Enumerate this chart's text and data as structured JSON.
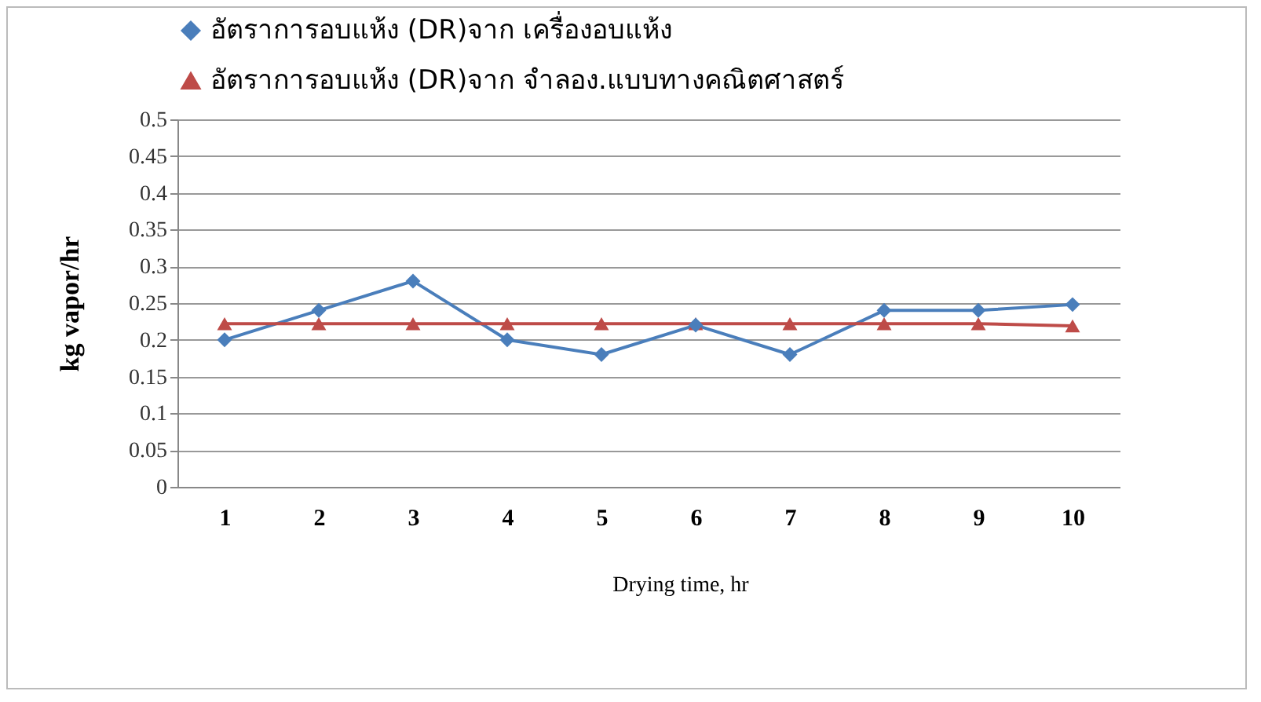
{
  "chart_data": {
    "type": "line",
    "xlabel": "Drying time, hr",
    "ylabel": "kg vapor/hr",
    "categories": [
      "1",
      "2",
      "3",
      "4",
      "5",
      "6",
      "7",
      "8",
      "9",
      "10"
    ],
    "series": [
      {
        "name": "อัตราการอบแห้ง (DR)จาก เครื่องอบแห้ง",
        "color": "#4a7ebb",
        "marker": "diamond",
        "values": [
          0.2,
          0.24,
          0.28,
          0.2,
          0.18,
          0.22,
          0.18,
          0.24,
          0.24,
          0.248
        ]
      },
      {
        "name": "อัตราการอบแห้ง (DR)จาก จำลอง.แบบทางคณิตศาสตร์",
        "color": "#be4b48",
        "marker": "triangle",
        "values": [
          0.222,
          0.222,
          0.222,
          0.222,
          0.222,
          0.222,
          0.222,
          0.222,
          0.222,
          0.219
        ]
      }
    ],
    "ylim": [
      0,
      0.5
    ],
    "yticks": [
      0,
      0.05,
      0.1,
      0.15,
      0.2,
      0.25,
      0.3,
      0.35,
      0.4,
      0.45,
      0.5
    ],
    "grid": "y",
    "legend": "top"
  }
}
